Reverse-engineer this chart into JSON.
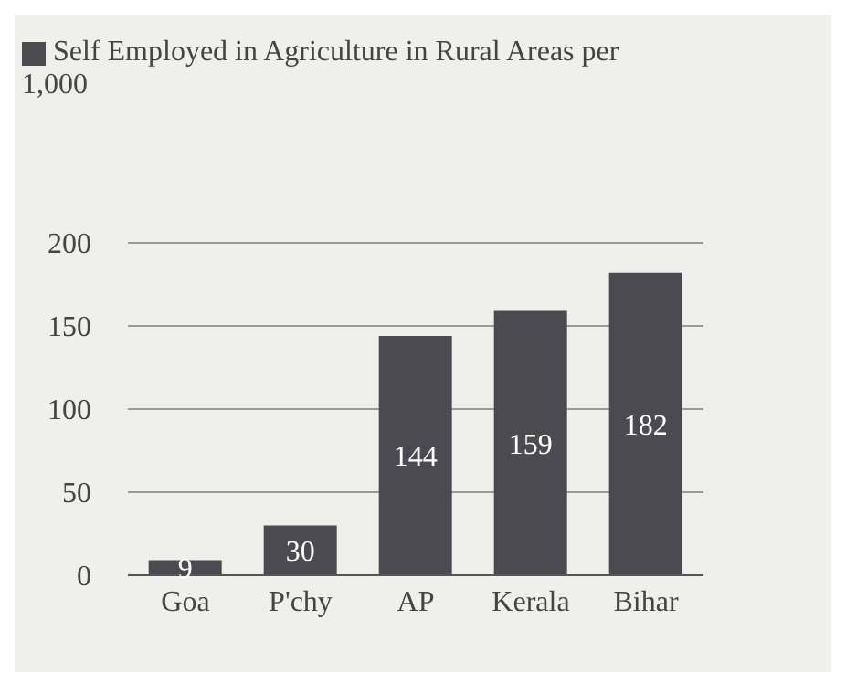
{
  "chart_data": {
    "type": "bar",
    "categories": [
      "Goa",
      "P'chy",
      "AP",
      "Kerala",
      "Bihar"
    ],
    "series": [
      {
        "name": "Self Employed in Agriculture in Rural Areas per 1,000",
        "color": "#4a4a50",
        "values": [
          9,
          30,
          144,
          159,
          182
        ]
      }
    ],
    "ylim": [
      0,
      200
    ],
    "yticks": [
      0,
      50,
      100,
      150,
      200
    ],
    "grid": "y",
    "legend": "top left",
    "data_labels": true
  }
}
